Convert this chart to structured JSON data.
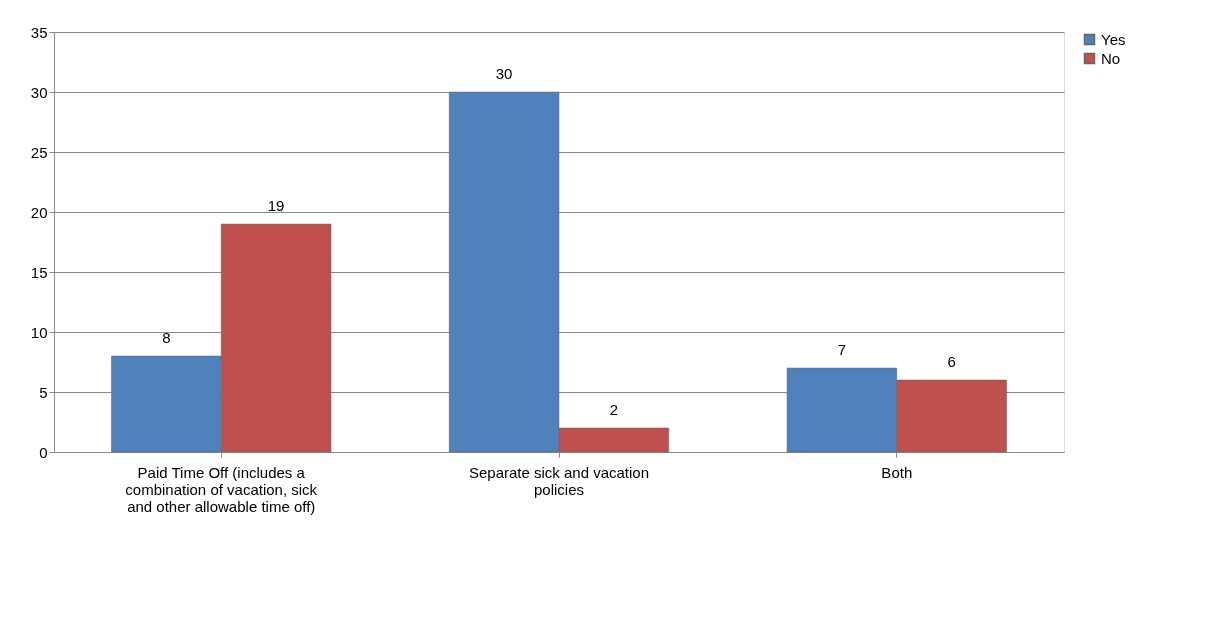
{
  "chart_data": {
    "type": "bar",
    "categories": [
      "Paid Time Off (includes a combination of vacation, sick and other allowable time off)",
      "Separate sick and vacation policies",
      "Both"
    ],
    "series": [
      {
        "name": "Yes",
        "color": "#4f81bd",
        "values": [
          8,
          30,
          7
        ]
      },
      {
        "name": "No",
        "color": "#c0504d",
        "values": [
          19,
          2,
          6
        ]
      }
    ],
    "ylim": [
      0,
      35
    ],
    "yticks": [
      0,
      5,
      10,
      15,
      20,
      25,
      30,
      35
    ],
    "grid": "y",
    "legend": "top right",
    "data_labels": true
  }
}
